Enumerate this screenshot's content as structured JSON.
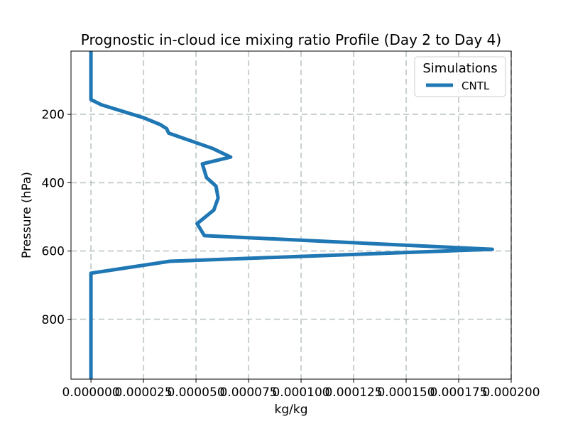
{
  "chart_data": {
    "type": "line",
    "title": "Prognostic in-cloud ice mixing ratio Profile (Day 2 to Day 4)",
    "xlabel": "kg/kg",
    "ylabel": "Pressure (hPa)",
    "xlim": [
      -9.5e-06,
      0.0002
    ],
    "ylim": [
      975,
      15
    ],
    "y_inverted": true,
    "grid": true,
    "x_ticks": [
      0.0,
      2.5e-05,
      5e-05,
      7.5e-05,
      0.0001,
      0.000125,
      0.00015,
      0.000175,
      0.0002
    ],
    "x_tick_labels": [
      "0.000000",
      "0.000025",
      "0.000050",
      "0.000075",
      "0.000100",
      "0.000125",
      "0.000150",
      "0.000175",
      "0.000200"
    ],
    "y_ticks": [
      200,
      400,
      600,
      800
    ],
    "y_tick_labels": [
      "200",
      "400",
      "600",
      "800"
    ],
    "legend": {
      "title": "Simulations",
      "placement": "top-right"
    },
    "series": [
      {
        "name": "CNTL",
        "color": "#1f77b4",
        "x": [
          0.0,
          0.0,
          0.0,
          5e-06,
          2.5e-05,
          3.3e-05,
          3.6e-05,
          3.7e-05,
          5.8e-05,
          6.65e-05,
          5.3e-05,
          5.5e-05,
          5.95e-05,
          6.05e-05,
          5.85e-05,
          5.05e-05,
          5.4e-05,
          0.000191,
          3.75e-05,
          0.0,
          0.0,
          0.0
        ],
        "y": [
          15,
          100,
          157,
          172,
          210,
          230,
          242,
          255,
          300,
          325,
          345,
          385,
          410,
          445,
          480,
          520,
          555,
          595,
          630,
          665,
          800,
          975
        ]
      }
    ]
  }
}
